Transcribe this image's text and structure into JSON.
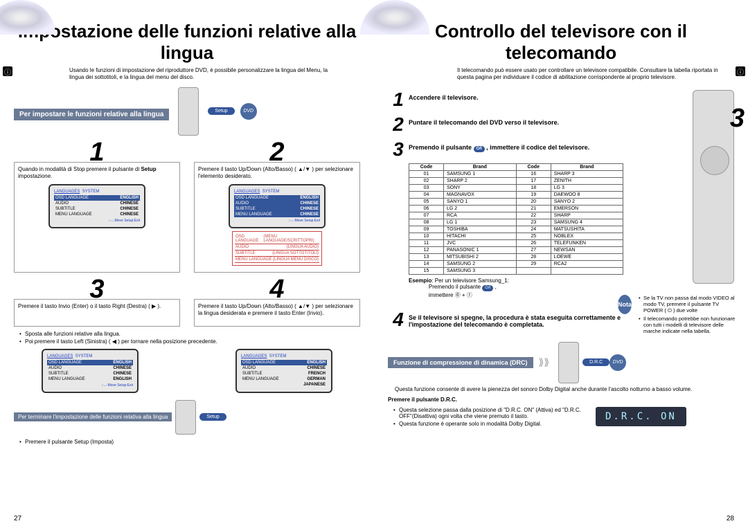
{
  "left": {
    "page_num": "27",
    "title": "Impostazione delle funzioni relative alla lingua",
    "intro": "Usando le funzioni di impostazione del riproduttore DVD, è possibile personalizzare la lingua del Menu, la lingua dei sottotitoli, e la lingua del menu del disco.",
    "bar": "Per impostare le funzioni relative alla lingua",
    "setup_label": "Setup",
    "dvd_label": "DVD",
    "steps": [
      {
        "n": "1",
        "pre": "Quando in modalità di Stop premere il pulsante di ",
        "b": "Setup",
        "suf": " impostazione."
      },
      {
        "n": "2",
        "full": "Premere il tasto Up/Down (Alto/Basso) ( ▲/▼ ) per selezionare l'elemento desiderato."
      },
      {
        "n": "3",
        "full": "Premere il tasto Invio (Enter) o il tasto Right (Destra) ( ▶ )."
      },
      {
        "n": "4",
        "full": "Premere il tasto Up/Down (Alto/Basso) ( ▲/▼ ) per selezionare la lingua desiderata e premere il tasto Enter (Invio)."
      }
    ],
    "mid_bullets": [
      "Sposta alle funzioni relative alla lingua.",
      "Poi premere il tasto Left (Sinistra) ( ◀ ) per tornare nella posizione precedente."
    ],
    "term_bar": "Per terminare l'impostazione delle funzioni relativa alla lingua",
    "term_bullet": "Premere il pulsante Setup (Imposta)",
    "screen": {
      "tabs_lang": "LANGUAGES",
      "tabs_sys": "SYSTEM",
      "rows": [
        [
          "OSD LANGUAGE",
          "ENGLISH"
        ],
        [
          "AUDIO",
          "CHINESE"
        ],
        [
          "SUBTITLE",
          "CHINESE"
        ],
        [
          "MENU LANGUAGE",
          "CHINESE"
        ]
      ],
      "rows4": [
        [
          "OSD LANGUAGE",
          "ENGLISH"
        ],
        [
          "AUDIO",
          "CHINESE"
        ],
        [
          "SUBTITLE",
          "FRENCH"
        ],
        [
          "MENU LANGUAGE",
          "GERMAN"
        ],
        [
          "",
          "JAPANESE"
        ]
      ],
      "foot": "↕↔:Move    Setup:Exit"
    },
    "info": [
      [
        "OSD LANGUAGE",
        "(MENU LANGUAGE/SCRITTOPRI)"
      ],
      [
        "AUDIO",
        "(LINGUA AUDIO)"
      ],
      [
        "SUBTITLE",
        "(LINGUA SOTTOTITOLI)"
      ],
      [
        "MENU LANGUAGE",
        "(LINGUA MENU DISCO)"
      ]
    ]
  },
  "right": {
    "page_num": "28",
    "title": "Controllo del televisore con il telecomando",
    "intro": "Il telecomando può essere usato per controllare un televisore compatibile. Consultare la tabella riportata in questa pagina per individuare il codice di abilitazione corrispondente al proprio televisore.",
    "steps": [
      "Accendere il televisore.",
      "Puntare il telecomando del DVD verso il televisore.",
      "Premendo il pulsante ___, immettere il codice del televisore.",
      "Se il televisore si spegne, la procedura è stata eseguita correttamente e l'impostazione del telecomando è completata."
    ],
    "tv_label": "TV",
    "table_head": [
      "Code",
      "Brand",
      "Code",
      "Brand"
    ],
    "table": [
      [
        "01",
        "SAMSUNG 1",
        "16",
        "SHARP 3"
      ],
      [
        "02",
        "SHARP 2",
        "17",
        "ZENITH"
      ],
      [
        "03",
        "SONY",
        "18",
        "LG 3"
      ],
      [
        "04",
        "MAGNAVOX",
        "19",
        "DAEWOO 8"
      ],
      [
        "05",
        "SANYO 1",
        "20",
        "SANYO 2"
      ],
      [
        "06",
        "LG 2",
        "21",
        "EMERSON"
      ],
      [
        "07",
        "RCA",
        "22",
        "SHARP"
      ],
      [
        "08",
        "LG 1",
        "23",
        "SAMSUNG 4"
      ],
      [
        "09",
        "TOSHIBA",
        "24",
        "MATSUSHITA"
      ],
      [
        "10",
        "HITACHI",
        "25",
        "NOBLEX"
      ],
      [
        "11",
        "JVC",
        "26",
        "TELEFUNKEN"
      ],
      [
        "12",
        "PANASONIC 1",
        "27",
        "NEWSAN"
      ],
      [
        "13",
        "MITSUBISHI 2",
        "28",
        "LOEWE"
      ],
      [
        "14",
        "SAMSUNG 2",
        "29",
        "RCA2"
      ],
      [
        "15",
        "SAMSUNG 3",
        "",
        ""
      ]
    ],
    "example_lbl": "Esempio",
    "example_txt": ": Per un televisore Samsung_1:",
    "example_l2": "Premendo il pulsante",
    "example_l3": "immettere ⓪ + ①",
    "nota_lbl": "Nota",
    "nota_items": [
      "Se la TV non passa dal modo VIDEO al modo TV, premere il pulsante TV POWER ( ⏻ ) due volte",
      "Il telecomando potrebbe non funzionare con tutti i modelli di televisore delle marche indicate nella tabella."
    ],
    "drc_bar": "Funzione di compressione di dinamica (DRC)",
    "drc_label": "D.R.C",
    "dvd_label": "DVD",
    "drc_desc": "Questa funzione consente di avere la pienezza del sonoro Dolby Digital anche durante l'ascolto notturno a basso volume.",
    "drc_head": "Premere il pulsante D.R.C.",
    "drc_b1": "Questa selezione passa dalla posizione di \"D.R.C. ON\" (Attiva) ed \"D.R.C. OFF\"(Disattiva) ogni volta che viene premuto il tasto.",
    "drc_b2": "Questa funzione è operante solo in modalità Dolby Digital.",
    "drc_display": "D.R.C. ON"
  }
}
